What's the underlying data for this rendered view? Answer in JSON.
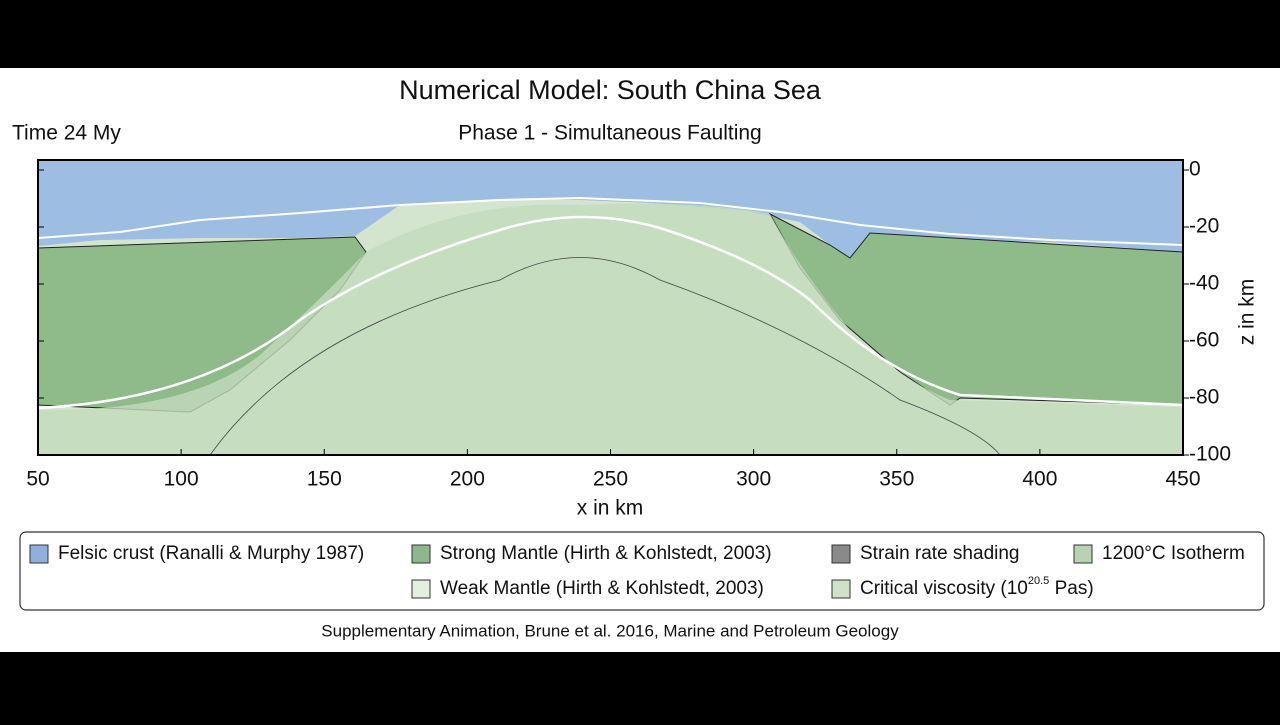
{
  "header": {
    "title": "Numerical Model: South China Sea",
    "subtitle": "Phase 1 - Simultaneous Faulting",
    "time": "Time 24 My"
  },
  "plot": {
    "xaxis": {
      "label": "x in km",
      "range": [
        50,
        450
      ],
      "ticks": [
        50,
        100,
        150,
        200,
        250,
        300,
        350,
        400,
        450
      ]
    },
    "yaxis": {
      "label": "z in km",
      "range": [
        -100,
        0
      ],
      "ticks": [
        0,
        -20,
        -40,
        -60,
        -80,
        -100
      ]
    }
  },
  "legend": {
    "items": [
      {
        "text": "Felsic crust (Ranalli & Murphy 1987)",
        "color": "#8fb0dc"
      },
      {
        "text": "Strong Mantle (Hirth & Kohlstedt, 2003)",
        "color": "#8db98a"
      },
      {
        "text": "Strain rate shading",
        "color": "#8a8a8a"
      },
      {
        "text": "1200°C Isotherm",
        "color": "#b8d3b2"
      },
      {
        "text": "Weak Mantle  (Hirth & Kohlstedt, 2003)",
        "color": "#e3efdf"
      },
      {
        "text": "Critical viscosity (10",
        "sup": "20.5",
        "tail": " Pas)",
        "color": "#cfe2c9"
      }
    ]
  },
  "footer": "Supplementary Animation, Brune et al. 2016, Marine and Petroleum Geology"
}
